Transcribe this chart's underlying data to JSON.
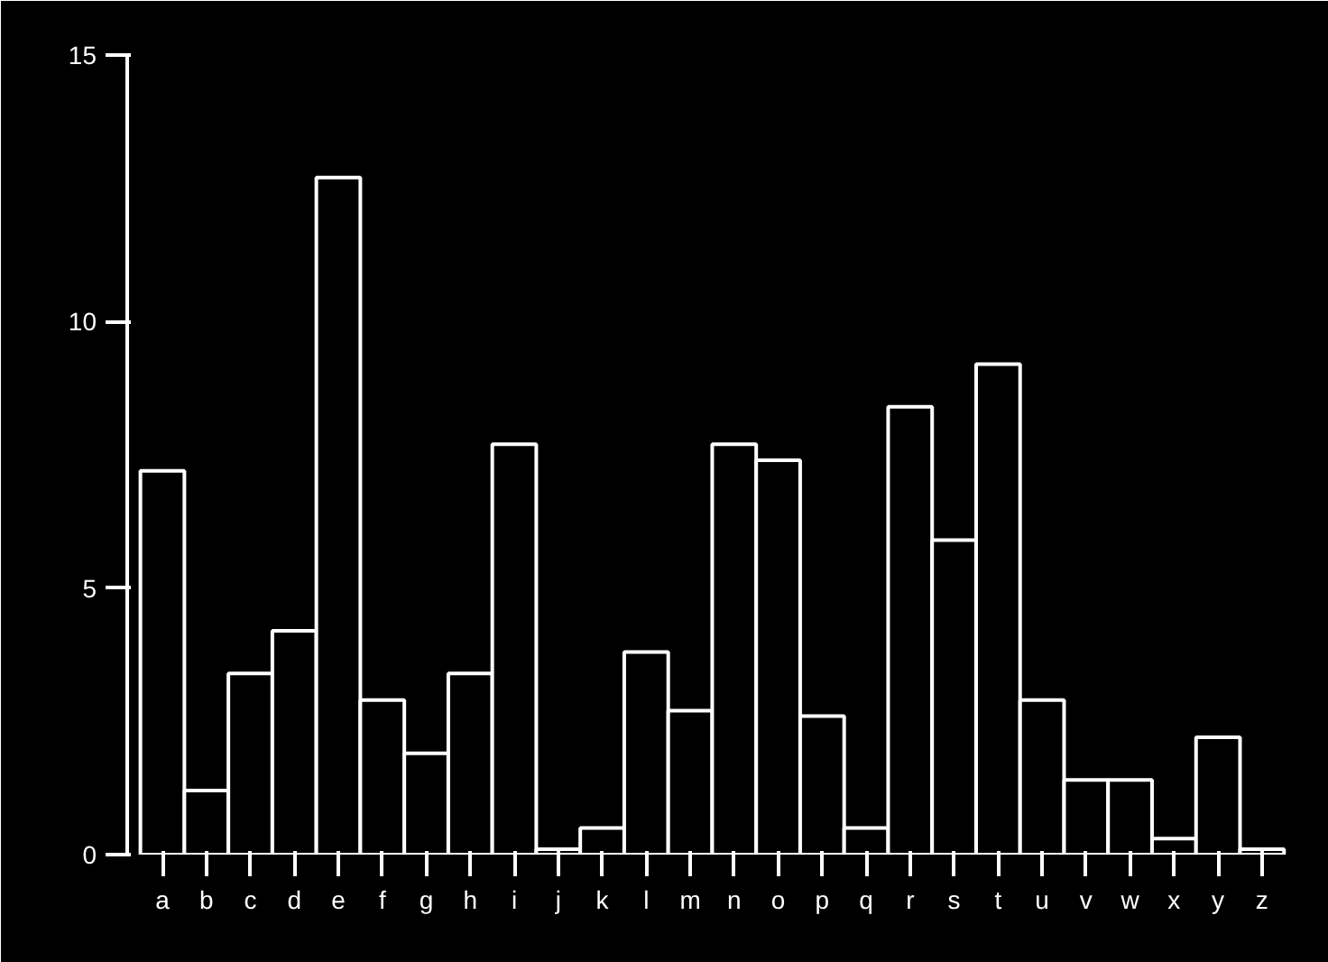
{
  "chart_data": {
    "type": "bar",
    "categories": [
      "a",
      "b",
      "c",
      "d",
      "e",
      "f",
      "g",
      "h",
      "i",
      "j",
      "k",
      "l",
      "m",
      "n",
      "o",
      "p",
      "q",
      "r",
      "s",
      "t",
      "u",
      "v",
      "w",
      "x",
      "y",
      "z"
    ],
    "values": [
      7.2,
      1.2,
      3.4,
      4.2,
      12.7,
      2.9,
      1.9,
      3.4,
      7.7,
      0.1,
      0.5,
      3.8,
      2.7,
      7.7,
      7.4,
      2.6,
      0.5,
      8.4,
      5.9,
      9.2,
      2.9,
      1.4,
      1.4,
      0.3,
      2.2,
      0.1
    ],
    "color": "#ffffff",
    "ylim": [
      0,
      15
    ],
    "yticks": [
      0,
      5,
      10,
      15
    ],
    "grid": false
  }
}
